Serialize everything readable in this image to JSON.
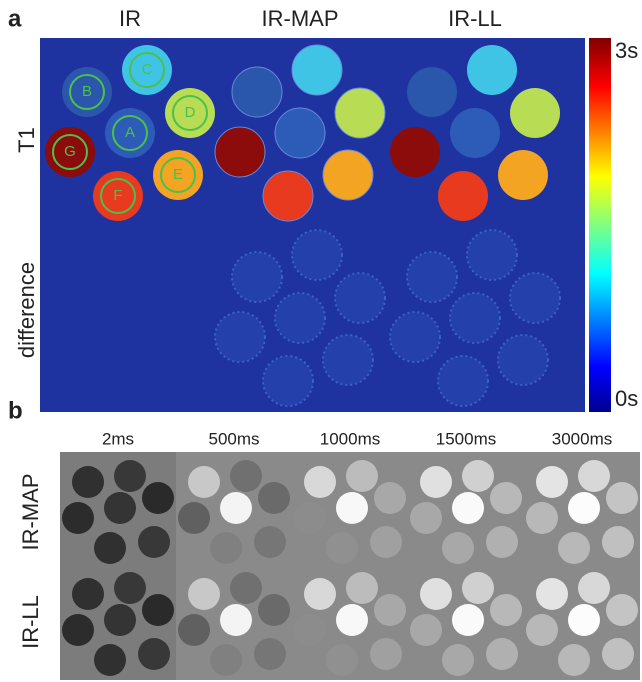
{
  "panel_a": {
    "label": "a",
    "columns": [
      "IR",
      "IR-MAP",
      "IR-LL"
    ],
    "rows": [
      "T1",
      "difference"
    ],
    "colorbar": {
      "max_label": "3s",
      "min_label": "0s"
    },
    "roi_labels": [
      "A",
      "B",
      "C",
      "D",
      "E",
      "F",
      "G"
    ]
  },
  "panel_b": {
    "label": "b",
    "columns": [
      "2ms",
      "500ms",
      "1000ms",
      "1500ms",
      "3000ms"
    ],
    "rows": [
      "IR-MAP",
      "IR-LL"
    ]
  }
}
